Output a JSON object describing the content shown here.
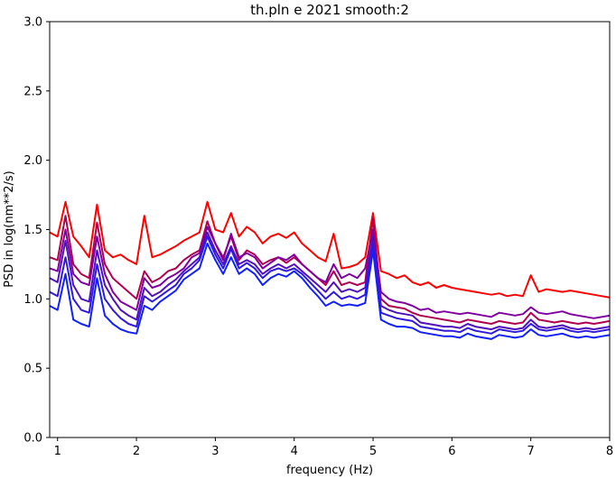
{
  "chart_data": {
    "type": "line",
    "title": "th.pln e 2021 smooth:2",
    "xlabel": "frequency (Hz)",
    "ylabel": "PSD in log(nm**2/s)",
    "xlim": [
      0.9,
      8.0
    ],
    "ylim": [
      0.0,
      3.0
    ],
    "xticks": [
      "1",
      "2",
      "3",
      "4",
      "5",
      "6",
      "7",
      "8"
    ],
    "yticks": [
      "0.0",
      "0.5",
      "1.0",
      "1.5",
      "2.0",
      "2.5",
      "3.0"
    ],
    "grid": false,
    "legend": "none",
    "x": [
      0.9,
      1.0,
      1.1,
      1.2,
      1.3,
      1.4,
      1.5,
      1.6,
      1.7,
      1.8,
      1.9,
      2.0,
      2.1,
      2.2,
      2.3,
      2.4,
      2.5,
      2.6,
      2.7,
      2.8,
      2.9,
      3.0,
      3.1,
      3.2,
      3.3,
      3.4,
      3.5,
      3.6,
      3.7,
      3.8,
      3.9,
      4.0,
      4.1,
      4.2,
      4.3,
      4.4,
      4.5,
      4.6,
      4.7,
      4.8,
      4.9,
      5.0,
      5.1,
      5.2,
      5.3,
      5.4,
      5.5,
      5.6,
      5.7,
      5.8,
      5.9,
      6.0,
      6.1,
      6.2,
      6.3,
      6.4,
      6.5,
      6.6,
      6.7,
      6.8,
      6.9,
      7.0,
      7.1,
      7.2,
      7.3,
      7.4,
      7.5,
      7.6,
      7.7,
      7.8,
      7.9,
      8.0
    ],
    "series": [
      {
        "color": "#ff0000",
        "values": [
          1.48,
          1.45,
          1.7,
          1.45,
          1.38,
          1.3,
          1.68,
          1.35,
          1.3,
          1.32,
          1.28,
          1.25,
          1.6,
          1.3,
          1.32,
          1.35,
          1.38,
          1.42,
          1.45,
          1.48,
          1.7,
          1.5,
          1.48,
          1.62,
          1.45,
          1.52,
          1.48,
          1.4,
          1.45,
          1.47,
          1.44,
          1.48,
          1.4,
          1.35,
          1.3,
          1.27,
          1.47,
          1.22,
          1.23,
          1.25,
          1.3,
          1.62,
          1.2,
          1.18,
          1.15,
          1.17,
          1.12,
          1.1,
          1.12,
          1.08,
          1.1,
          1.08,
          1.07,
          1.06,
          1.05,
          1.04,
          1.03,
          1.04,
          1.02,
          1.03,
          1.02,
          1.17,
          1.05,
          1.07,
          1.06,
          1.05,
          1.06,
          1.05,
          1.04,
          1.03,
          1.02,
          1.01
        ]
      },
      {
        "color": "#b00050",
        "values": [
          1.3,
          1.28,
          1.6,
          1.25,
          1.18,
          1.15,
          1.55,
          1.25,
          1.15,
          1.1,
          1.05,
          1.0,
          1.2,
          1.12,
          1.15,
          1.2,
          1.22,
          1.28,
          1.32,
          1.35,
          1.56,
          1.4,
          1.3,
          1.45,
          1.28,
          1.35,
          1.32,
          1.25,
          1.28,
          1.3,
          1.26,
          1.3,
          1.25,
          1.2,
          1.15,
          1.1,
          1.2,
          1.1,
          1.12,
          1.1,
          1.12,
          1.58,
          1.0,
          0.95,
          0.94,
          0.93,
          0.9,
          0.88,
          0.87,
          0.86,
          0.85,
          0.84,
          0.83,
          0.85,
          0.84,
          0.83,
          0.82,
          0.84,
          0.83,
          0.82,
          0.83,
          0.9,
          0.85,
          0.84,
          0.83,
          0.84,
          0.83,
          0.82,
          0.83,
          0.82,
          0.83,
          0.84
        ]
      },
      {
        "color": "#8000a0",
        "values": [
          1.22,
          1.2,
          1.5,
          1.18,
          1.12,
          1.1,
          1.45,
          1.18,
          1.05,
          0.98,
          0.95,
          0.92,
          1.15,
          1.08,
          1.1,
          1.15,
          1.18,
          1.22,
          1.3,
          1.33,
          1.52,
          1.4,
          1.28,
          1.47,
          1.3,
          1.33,
          1.3,
          1.22,
          1.26,
          1.3,
          1.28,
          1.32,
          1.25,
          1.2,
          1.15,
          1.12,
          1.25,
          1.15,
          1.18,
          1.15,
          1.22,
          1.5,
          1.05,
          1.0,
          0.98,
          0.97,
          0.95,
          0.92,
          0.93,
          0.9,
          0.91,
          0.9,
          0.89,
          0.9,
          0.89,
          0.88,
          0.87,
          0.9,
          0.89,
          0.88,
          0.89,
          0.94,
          0.9,
          0.89,
          0.9,
          0.91,
          0.89,
          0.88,
          0.87,
          0.86,
          0.87,
          0.88
        ]
      },
      {
        "color": "#5010c0",
        "values": [
          1.15,
          1.12,
          1.42,
          1.1,
          1.0,
          0.98,
          1.35,
          1.1,
          1.0,
          0.92,
          0.88,
          0.85,
          1.08,
          1.02,
          1.05,
          1.1,
          1.14,
          1.2,
          1.25,
          1.3,
          1.48,
          1.35,
          1.25,
          1.38,
          1.25,
          1.28,
          1.25,
          1.18,
          1.22,
          1.25,
          1.22,
          1.25,
          1.2,
          1.15,
          1.1,
          1.05,
          1.12,
          1.05,
          1.07,
          1.05,
          1.08,
          1.45,
          0.95,
          0.92,
          0.9,
          0.89,
          0.88,
          0.83,
          0.82,
          0.81,
          0.8,
          0.8,
          0.79,
          0.82,
          0.8,
          0.79,
          0.78,
          0.8,
          0.79,
          0.78,
          0.79,
          0.85,
          0.8,
          0.79,
          0.8,
          0.81,
          0.79,
          0.78,
          0.79,
          0.78,
          0.79,
          0.8
        ]
      },
      {
        "color": "#3018e0",
        "values": [
          1.05,
          1.02,
          1.3,
          1.0,
          0.92,
          0.9,
          1.25,
          1.0,
          0.92,
          0.86,
          0.82,
          0.8,
          1.02,
          0.98,
          1.02,
          1.06,
          1.1,
          1.18,
          1.22,
          1.28,
          1.45,
          1.32,
          1.22,
          1.36,
          1.22,
          1.26,
          1.22,
          1.15,
          1.2,
          1.22,
          1.2,
          1.22,
          1.18,
          1.12,
          1.06,
          1.0,
          1.05,
          1.0,
          1.02,
          1.0,
          1.03,
          1.4,
          0.9,
          0.88,
          0.86,
          0.85,
          0.84,
          0.8,
          0.79,
          0.78,
          0.77,
          0.77,
          0.76,
          0.79,
          0.77,
          0.76,
          0.75,
          0.78,
          0.77,
          0.76,
          0.77,
          0.82,
          0.78,
          0.77,
          0.78,
          0.79,
          0.77,
          0.76,
          0.77,
          0.76,
          0.77,
          0.78
        ]
      },
      {
        "color": "#1020ff",
        "values": [
          0.95,
          0.92,
          1.18,
          0.85,
          0.82,
          0.8,
          1.15,
          0.88,
          0.82,
          0.78,
          0.76,
          0.75,
          0.95,
          0.92,
          0.98,
          1.02,
          1.06,
          1.14,
          1.18,
          1.22,
          1.4,
          1.28,
          1.18,
          1.3,
          1.18,
          1.22,
          1.18,
          1.1,
          1.15,
          1.18,
          1.16,
          1.2,
          1.15,
          1.08,
          1.02,
          0.95,
          0.98,
          0.95,
          0.96,
          0.95,
          0.97,
          1.35,
          0.85,
          0.82,
          0.8,
          0.8,
          0.79,
          0.76,
          0.75,
          0.74,
          0.73,
          0.73,
          0.72,
          0.75,
          0.73,
          0.72,
          0.71,
          0.74,
          0.73,
          0.72,
          0.73,
          0.78,
          0.74,
          0.73,
          0.74,
          0.75,
          0.73,
          0.72,
          0.73,
          0.72,
          0.73,
          0.74
        ]
      }
    ]
  }
}
